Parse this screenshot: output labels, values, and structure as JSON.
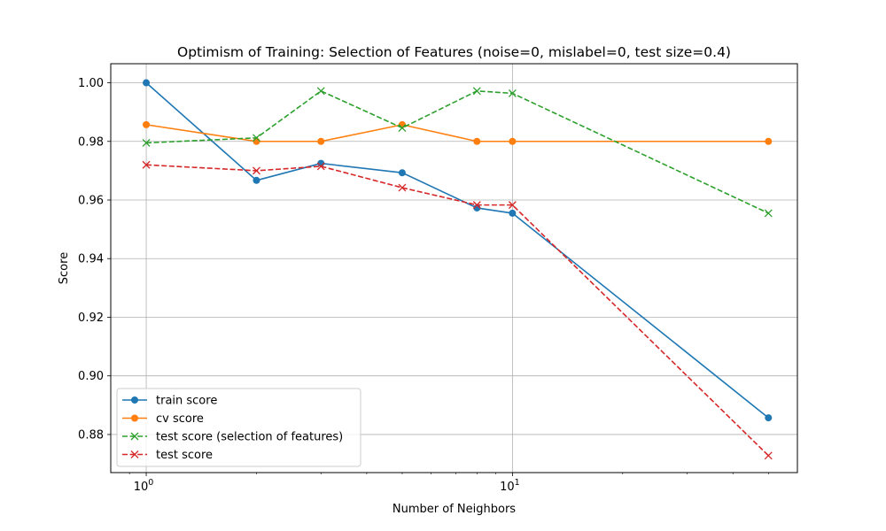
{
  "chart_data": {
    "type": "line",
    "title": "Optimism of Training: Selection of Features (noise=0, mislabel=0, test size=0.4)",
    "xlabel": "Number of Neighbors",
    "ylabel": "Score",
    "xscale": "log",
    "xlim": [
      0.8,
      60
    ],
    "ylim": [
      0.867,
      1.0065
    ],
    "x_ticks": [
      {
        "value": 1,
        "base": "10",
        "exp": "0"
      },
      {
        "value": 10,
        "base": "10",
        "exp": "1"
      }
    ],
    "y_ticks": [
      {
        "value": 0.88,
        "label": "0.88"
      },
      {
        "value": 0.9,
        "label": "0.90"
      },
      {
        "value": 0.92,
        "label": "0.92"
      },
      {
        "value": 0.94,
        "label": "0.94"
      },
      {
        "value": 0.96,
        "label": "0.96"
      },
      {
        "value": 0.98,
        "label": "0.98"
      },
      {
        "value": 1.0,
        "label": "1.00"
      }
    ],
    "grid": true,
    "legend_position": "lower-left",
    "x": [
      1,
      2,
      3,
      5,
      8,
      10,
      50
    ],
    "series": [
      {
        "name": "train score",
        "values": [
          1.0,
          0.9667,
          0.9725,
          0.9693,
          0.9573,
          0.9555,
          0.8857
        ],
        "color": "#1f77b4",
        "linestyle": "solid",
        "marker": "circle"
      },
      {
        "name": "cv score",
        "values": [
          0.9857,
          0.98,
          0.98,
          0.9857,
          0.98,
          0.98,
          0.98
        ],
        "color": "#ff7f0e",
        "linestyle": "solid",
        "marker": "circle"
      },
      {
        "name": "test score (selection of features)",
        "values": [
          0.9795,
          0.9812,
          0.9972,
          0.9846,
          0.9972,
          0.9964,
          0.9555
        ],
        "color": "#2ca02c",
        "linestyle": "dashed",
        "marker": "x"
      },
      {
        "name": "test score",
        "values": [
          0.972,
          0.97,
          0.9715,
          0.9642,
          0.9583,
          0.9583,
          0.8728
        ],
        "color": "#d62728",
        "linestyle": "dashed",
        "marker": "x"
      }
    ]
  }
}
